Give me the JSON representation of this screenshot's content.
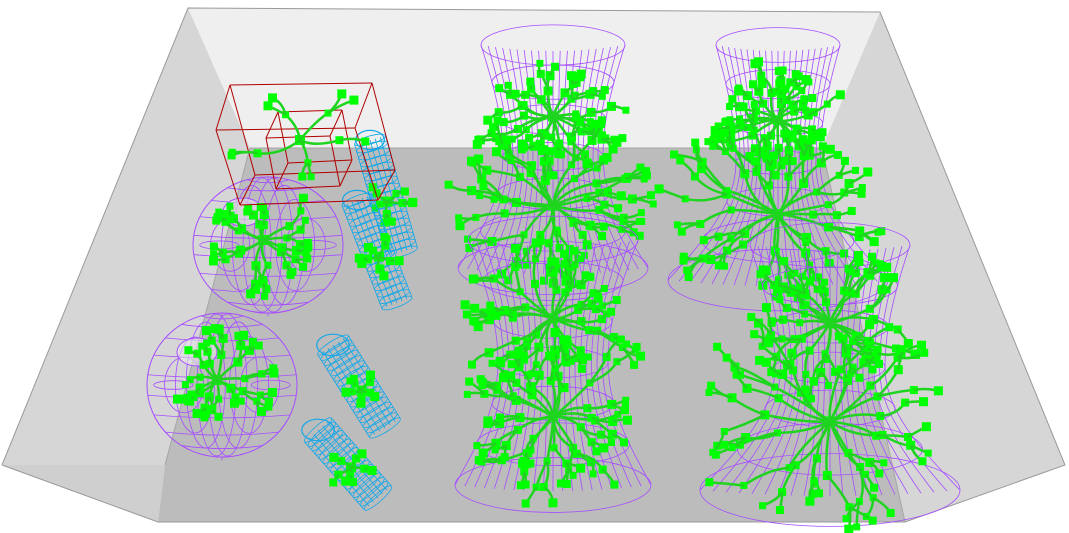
{
  "scene": {
    "colors": {
      "background": "#ffffff",
      "floor": "#bdbdbd",
      "back_wall": "#efefef",
      "side_wall": "#d8d8d8",
      "edge": "#9a9a9a",
      "mesh_purple": "#a64dff",
      "mesh_blue": "#12a7e8",
      "tree_green": "#00ff00",
      "tree_branch": "#1fd41f",
      "bbox_red": "#b00000"
    },
    "objects": [
      {
        "kind": "vase",
        "id": "vase-upper-left",
        "seed": 11
      },
      {
        "kind": "vase",
        "id": "vase-lower-left",
        "seed": 23
      },
      {
        "kind": "tube",
        "id": "tube-upper-back",
        "seed": 3
      },
      {
        "kind": "tube",
        "id": "tube-upper-front",
        "seed": 5
      },
      {
        "kind": "tube",
        "id": "tube-lower-back",
        "seed": 7
      },
      {
        "kind": "tube",
        "id": "tube-lower-front",
        "seed": 9
      },
      {
        "kind": "hourglass",
        "id": "hourglass-center-back",
        "seed": 31
      },
      {
        "kind": "hourglass",
        "id": "hourglass-center-front",
        "seed": 37
      },
      {
        "kind": "hourglass",
        "id": "hourglass-right-back",
        "seed": 41
      },
      {
        "kind": "hourglass",
        "id": "hourglass-right-front",
        "seed": 47
      },
      {
        "kind": "bounding-box",
        "id": "selection-box",
        "seed": 53
      }
    ]
  }
}
